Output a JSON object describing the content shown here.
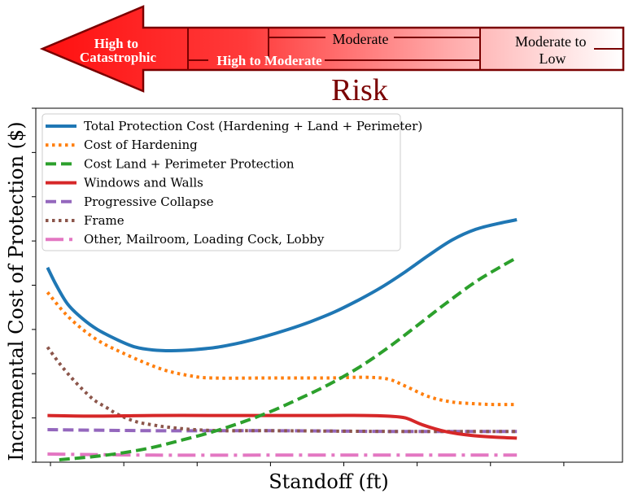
{
  "colors": {
    "risk_dark": "#7a0000",
    "risk_red": "#ff1a1a",
    "legend_border": "#cccccc"
  },
  "risk_banner": {
    "title": "Risk",
    "segments": [
      {
        "label": "High to\nCatastrophic"
      },
      {
        "label": "High to Moderate"
      },
      {
        "label": "Moderate"
      },
      {
        "label": "Moderate to\nLow"
      }
    ]
  },
  "chart_data": {
    "type": "line",
    "title": "",
    "xlabel": "Standoff (ft)",
    "ylabel": "Incremental Cost of Protection ($)",
    "xlim": [
      0,
      100
    ],
    "ylim": [
      0,
      100
    ],
    "x_tick_labels": "none",
    "y_tick_labels": "none",
    "grid": false,
    "legend_placement": "top-left",
    "series": [
      {
        "name": "Total Protection Cost (Hardening + Land + Perimeter)",
        "color": "#1f77b4",
        "style": "solid",
        "points": [
          [
            2,
            55
          ],
          [
            3.5,
            50
          ],
          [
            5.5,
            44.5
          ],
          [
            8,
            40.5
          ],
          [
            10.5,
            37.5
          ],
          [
            14,
            34.5
          ],
          [
            17,
            32.5
          ],
          [
            20,
            31.7
          ],
          [
            23,
            31.5
          ],
          [
            27,
            31.8
          ],
          [
            31,
            32.5
          ],
          [
            35,
            33.8
          ],
          [
            39,
            35.5
          ],
          [
            43,
            37.5
          ],
          [
            47,
            39.8
          ],
          [
            51,
            42.5
          ],
          [
            55,
            45.8
          ],
          [
            59,
            49.5
          ],
          [
            63,
            53.8
          ],
          [
            67,
            58.5
          ],
          [
            71,
            62.8
          ],
          [
            75,
            65.8
          ],
          [
            79,
            67.5
          ],
          [
            82,
            68.5
          ]
        ]
      },
      {
        "name": "Cost of Hardening",
        "color": "#ff7f0e",
        "style": "dotted",
        "points": [
          [
            2,
            48
          ],
          [
            5,
            42
          ],
          [
            8,
            37.5
          ],
          [
            11,
            34
          ],
          [
            14,
            31.5
          ],
          [
            18,
            28.5
          ],
          [
            22,
            26
          ],
          [
            26,
            24.5
          ],
          [
            30,
            23.8
          ],
          [
            40,
            23.8
          ],
          [
            50,
            23.8
          ],
          [
            56,
            24
          ],
          [
            60,
            23.5
          ],
          [
            63,
            21.5
          ],
          [
            67,
            18.5
          ],
          [
            71,
            17
          ],
          [
            75,
            16.5
          ],
          [
            78,
            16.3
          ],
          [
            82,
            16.3
          ]
        ]
      },
      {
        "name": "Cost Land + Perimeter Protection",
        "color": "#2ca02c",
        "style": "dashed",
        "points": [
          [
            4,
            0.7
          ],
          [
            10,
            1.6
          ],
          [
            15,
            2.7
          ],
          [
            20,
            4.2
          ],
          [
            25,
            6.3
          ],
          [
            30,
            8.5
          ],
          [
            35,
            11.2
          ],
          [
            40,
            14.3
          ],
          [
            45,
            18
          ],
          [
            50,
            22
          ],
          [
            55,
            26.7
          ],
          [
            60,
            32.3
          ],
          [
            65,
            38.6
          ],
          [
            70,
            45
          ],
          [
            75,
            51
          ],
          [
            79,
            55
          ],
          [
            82,
            57.8
          ]
        ]
      },
      {
        "name": "Windows and Walls",
        "color": "#d62728",
        "style": "solid",
        "points": [
          [
            2,
            13.2
          ],
          [
            10,
            13
          ],
          [
            20,
            13.2
          ],
          [
            30,
            13.2
          ],
          [
            40,
            13.2
          ],
          [
            50,
            13.2
          ],
          [
            56,
            13.2
          ],
          [
            60,
            13
          ],
          [
            63,
            12.5
          ],
          [
            66,
            10.5
          ],
          [
            70,
            8.6
          ],
          [
            74,
            7.6
          ],
          [
            78,
            7.1
          ],
          [
            82,
            6.8
          ]
        ]
      },
      {
        "name": "Progressive Collapse",
        "color": "#9467bd",
        "style": "dashed",
        "points": [
          [
            2,
            9.2
          ],
          [
            20,
            8.9
          ],
          [
            40,
            8.9
          ],
          [
            60,
            8.7
          ],
          [
            82,
            8.7
          ]
        ]
      },
      {
        "name": "Frame",
        "color": "#8c564b",
        "style": "dotted",
        "points": [
          [
            2,
            32.5
          ],
          [
            4,
            28
          ],
          [
            6,
            24
          ],
          [
            8,
            20.5
          ],
          [
            10,
            17.5
          ],
          [
            12,
            15.5
          ],
          [
            14,
            13.5
          ],
          [
            17,
            11.5
          ],
          [
            20,
            10.5
          ],
          [
            23,
            9.8
          ],
          [
            27,
            9.2
          ],
          [
            32,
            8.9
          ],
          [
            40,
            8.9
          ],
          [
            60,
            8.7
          ],
          [
            82,
            8.7
          ]
        ]
      },
      {
        "name": "Other, Mailroom, Loading Cock, Lobby",
        "color": "#e377c2",
        "style": "dashdot",
        "points": [
          [
            2,
            2.3
          ],
          [
            20,
            2
          ],
          [
            40,
            2
          ],
          [
            60,
            2
          ],
          [
            82,
            2
          ]
        ]
      }
    ]
  }
}
